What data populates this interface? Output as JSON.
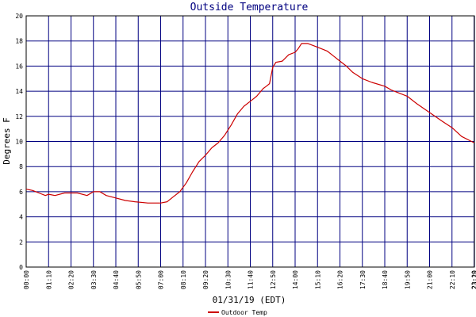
{
  "chart_data": {
    "type": "line",
    "title": "Outside Temperature",
    "xlabel": "01/31/19 (EDT)",
    "ylabel": "Degrees F",
    "ylim": [
      0,
      20
    ],
    "yticks": [
      "0",
      "2",
      "4",
      "6",
      "8",
      "10",
      "12",
      "14",
      "16",
      "18",
      "20"
    ],
    "xticks": [
      "00:00",
      "01:10",
      "02:20",
      "03:30",
      "04:40",
      "05:50",
      "07:00",
      "08:10",
      "09:20",
      "10:30",
      "11:40",
      "12:50",
      "14:00",
      "15:10",
      "16:20",
      "17:30",
      "18:40",
      "19:50",
      "21:00",
      "22:10",
      "23:19",
      "23:20"
    ],
    "grid": true,
    "colors": {
      "plot_border": "#000000",
      "grid": "#000080",
      "series": "#cc0000",
      "title": "#000080"
    },
    "series": [
      {
        "name": "Outdoor Temp",
        "points": [
          [
            "00:00",
            6.2
          ],
          [
            "00:20",
            6.1
          ],
          [
            "00:40",
            5.9
          ],
          [
            "01:00",
            5.7
          ],
          [
            "01:10",
            5.8
          ],
          [
            "01:30",
            5.7
          ],
          [
            "02:00",
            5.9
          ],
          [
            "02:40",
            5.9
          ],
          [
            "03:10",
            5.7
          ],
          [
            "03:30",
            6.0
          ],
          [
            "03:50",
            6.0
          ],
          [
            "04:10",
            5.7
          ],
          [
            "04:40",
            5.5
          ],
          [
            "05:10",
            5.3
          ],
          [
            "05:40",
            5.2
          ],
          [
            "06:20",
            5.1
          ],
          [
            "07:00",
            5.1
          ],
          [
            "07:20",
            5.2
          ],
          [
            "07:40",
            5.6
          ],
          [
            "08:00",
            6.0
          ],
          [
            "08:20",
            6.7
          ],
          [
            "08:40",
            7.6
          ],
          [
            "09:00",
            8.4
          ],
          [
            "09:20",
            8.9
          ],
          [
            "09:40",
            9.5
          ],
          [
            "10:00",
            9.9
          ],
          [
            "10:20",
            10.5
          ],
          [
            "10:40",
            11.3
          ],
          [
            "11:00",
            12.2
          ],
          [
            "11:20",
            12.8
          ],
          [
            "11:40",
            13.2
          ],
          [
            "12:00",
            13.6
          ],
          [
            "12:20",
            14.2
          ],
          [
            "12:30",
            14.4
          ],
          [
            "12:40",
            14.6
          ],
          [
            "12:50",
            15.9
          ],
          [
            "13:00",
            16.3
          ],
          [
            "13:20",
            16.4
          ],
          [
            "13:40",
            16.9
          ],
          [
            "14:00",
            17.1
          ],
          [
            "14:10",
            17.4
          ],
          [
            "14:20",
            17.8
          ],
          [
            "14:40",
            17.8
          ],
          [
            "15:10",
            17.5
          ],
          [
            "15:40",
            17.2
          ],
          [
            "16:00",
            16.8
          ],
          [
            "16:20",
            16.4
          ],
          [
            "16:40",
            16.0
          ],
          [
            "17:00",
            15.5
          ],
          [
            "17:30",
            15.0
          ],
          [
            "18:00",
            14.7
          ],
          [
            "18:40",
            14.4
          ],
          [
            "19:00",
            14.1
          ],
          [
            "19:20",
            13.9
          ],
          [
            "19:50",
            13.6
          ],
          [
            "20:20",
            13.0
          ],
          [
            "21:00",
            12.3
          ],
          [
            "21:40",
            11.6
          ],
          [
            "22:10",
            11.1
          ],
          [
            "22:40",
            10.4
          ],
          [
            "23:19",
            9.9
          ]
        ]
      }
    ]
  }
}
